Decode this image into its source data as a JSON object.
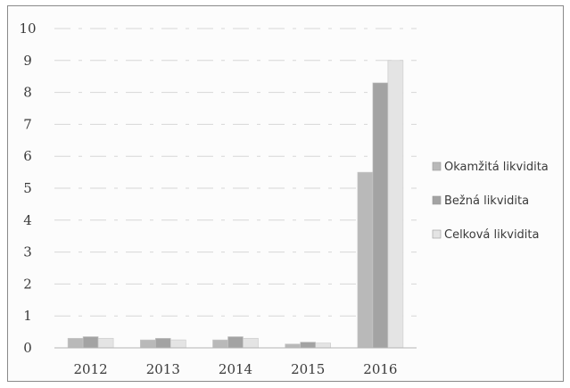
{
  "chart_data": {
    "type": "bar",
    "title": "",
    "xlabel": "",
    "ylabel": "",
    "categories": [
      "2012",
      "2013",
      "2014",
      "2015",
      "2016"
    ],
    "ylim": [
      0,
      10
    ],
    "yticks": [
      "0",
      "1",
      "2",
      "3",
      "4",
      "5",
      "6",
      "7",
      "8",
      "9",
      "10"
    ],
    "grid": true,
    "legend_position": "right",
    "series": [
      {
        "name": "Okamžitá likvidita",
        "color": "#b9b9b9",
        "values": [
          0.3,
          0.25,
          0.25,
          0.12,
          5.5
        ]
      },
      {
        "name": "Bežná likvidita",
        "color": "#a3a3a3",
        "values": [
          0.35,
          0.3,
          0.35,
          0.18,
          8.3
        ]
      },
      {
        "name": "Celková likvidita",
        "color": "#e4e4e4",
        "values": [
          0.3,
          0.25,
          0.3,
          0.15,
          9.0
        ]
      }
    ]
  }
}
